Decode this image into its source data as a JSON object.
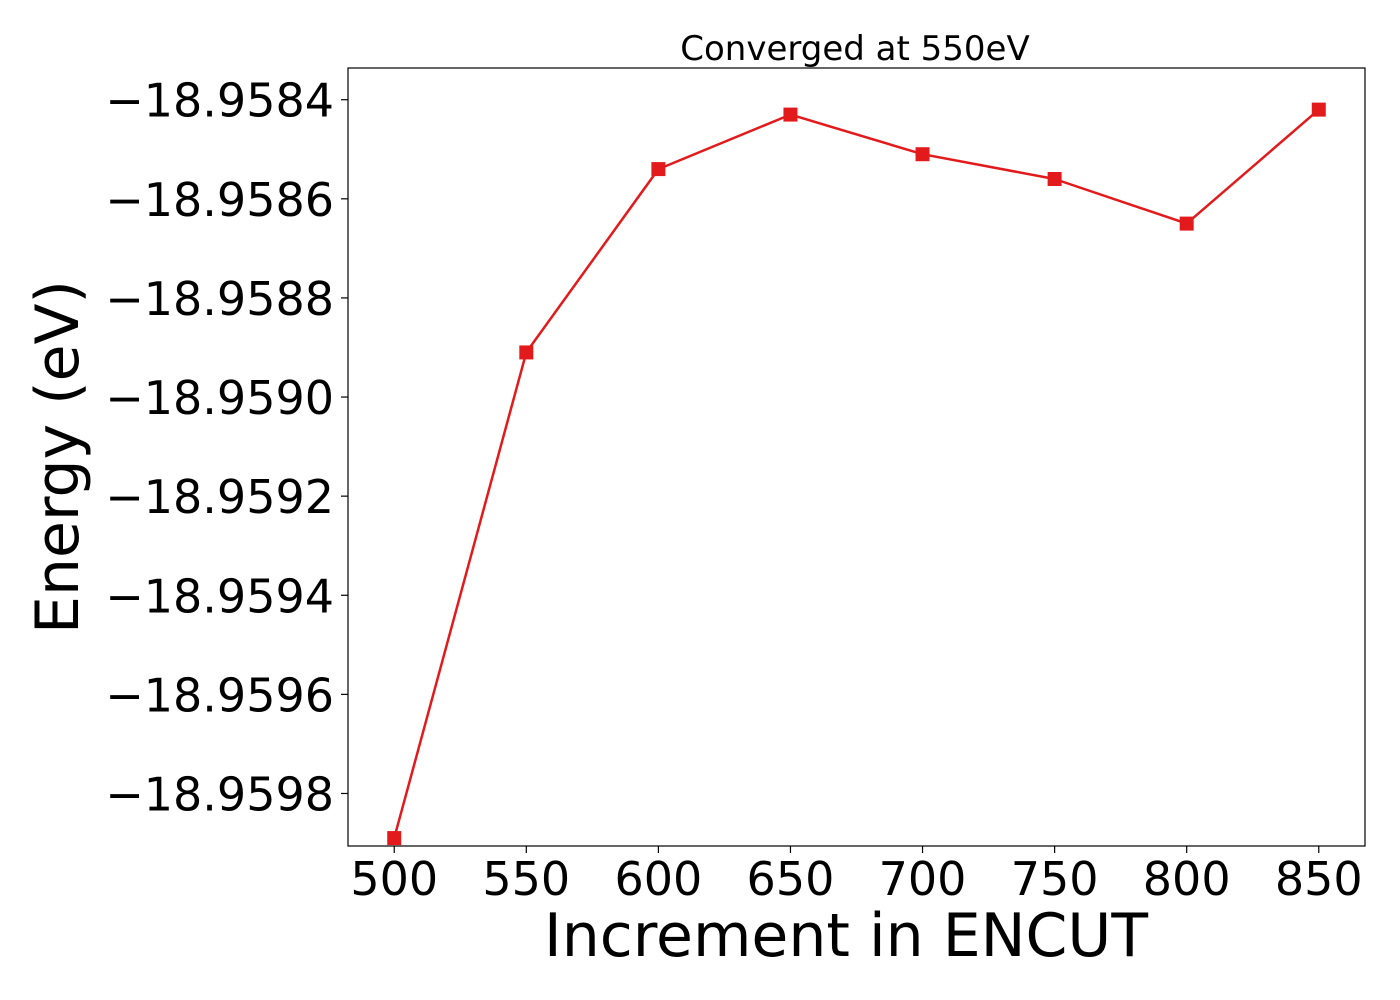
{
  "chart_data": {
    "type": "line",
    "title": "Converged at 550eV",
    "xlabel": "Increment in ENCUT",
    "ylabel": "Energy (eV)",
    "x": [
      500,
      550,
      600,
      650,
      700,
      750,
      800,
      850
    ],
    "series": [
      {
        "values": [
          -18.95989,
          -18.95891,
          -18.95854,
          -18.95843,
          -18.95851,
          -18.95856,
          -18.95865,
          -18.95842
        ],
        "color": "#e31a1c",
        "marker": "square"
      }
    ],
    "xticks": [
      500,
      550,
      600,
      650,
      700,
      750,
      800,
      850
    ],
    "xtick_labels": [
      "500",
      "550",
      "600",
      "650",
      "700",
      "750",
      "800",
      "850"
    ],
    "yticks": [
      -18.9598,
      -18.9596,
      -18.9594,
      -18.9592,
      -18.959,
      -18.9588,
      -18.9586,
      -18.9584
    ],
    "ytick_labels": [
      "−18.9598",
      "−18.9596",
      "−18.9594",
      "−18.9592",
      "−18.9590",
      "−18.9588",
      "−18.9586",
      "−18.9584"
    ],
    "xlim": [
      482.5,
      867.5
    ],
    "ylim": [
      -18.959906,
      -18.958336
    ],
    "grid": false,
    "legend": "none"
  }
}
